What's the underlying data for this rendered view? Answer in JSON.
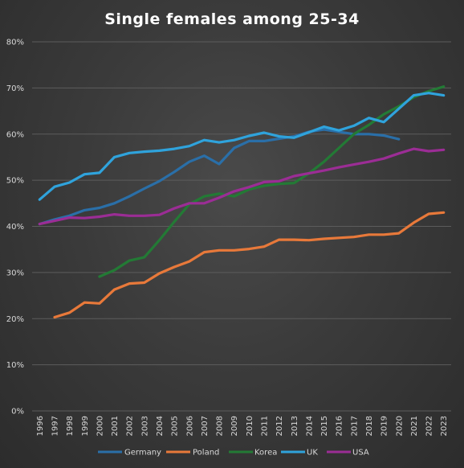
{
  "chart_data": {
    "type": "line",
    "title": "Single females among 25-34",
    "xlabel": "",
    "ylabel": "",
    "ylim": [
      0,
      80
    ],
    "yticks": [
      0,
      10,
      20,
      30,
      40,
      50,
      60,
      70,
      80
    ],
    "ytick_format": "%",
    "grid": true,
    "legend_position": "bottom",
    "x": [
      "1996",
      "1997",
      "1998",
      "1999",
      "2000",
      "2001",
      "2002",
      "2003",
      "2004",
      "2005",
      "2006",
      "2007",
      "2008",
      "2009",
      "2010",
      "2011",
      "2012",
      "2013",
      "2014",
      "2015",
      "2016",
      "2017",
      "2018",
      "2019",
      "2020",
      "2021",
      "2022",
      "2023"
    ],
    "series": [
      {
        "name": "Germany",
        "color": "#2a6fa8",
        "values": [
          40.5,
          41.5,
          42.3,
          43.5,
          44.0,
          45.0,
          46.5,
          48.2,
          49.8,
          51.8,
          54.0,
          55.3,
          53.5,
          57.0,
          58.5,
          58.5,
          59.0,
          59.5,
          60.5,
          61.0,
          60.5,
          60.0,
          60.0,
          59.7,
          58.9,
          null,
          null,
          null
        ]
      },
      {
        "name": "Poland",
        "color": "#e8793a",
        "values": [
          null,
          20.3,
          21.3,
          23.5,
          23.3,
          26.3,
          27.6,
          27.8,
          29.8,
          31.2,
          32.4,
          34.4,
          34.8,
          34.8,
          35.1,
          35.6,
          37.1,
          37.1,
          37.0,
          37.3,
          37.5,
          37.7,
          38.2,
          38.2,
          38.5,
          40.8,
          42.7,
          43.0
        ]
      },
      {
        "name": "Korea",
        "color": "#237a35",
        "values": [
          null,
          null,
          null,
          null,
          29.1,
          30.5,
          32.6,
          33.3,
          37.0,
          41.0,
          44.8,
          46.5,
          47.1,
          46.5,
          48.0,
          48.8,
          49.2,
          49.4,
          51.5,
          54.0,
          57.0,
          60.0,
          62.0,
          64.3,
          66.0,
          68.0,
          69.3,
          70.3
        ]
      },
      {
        "name": "UK",
        "color": "#2fa3dc",
        "values": [
          45.8,
          48.6,
          49.5,
          51.3,
          51.6,
          55.0,
          55.9,
          56.2,
          56.4,
          56.8,
          57.4,
          58.7,
          58.2,
          58.7,
          59.6,
          60.3,
          59.5,
          59.2,
          60.4,
          61.6,
          60.8,
          61.8,
          63.5,
          62.6,
          65.5,
          68.4,
          68.9,
          68.4
        ]
      },
      {
        "name": "USA",
        "color": "#9b2d95",
        "values": [
          40.5,
          41.2,
          41.9,
          41.8,
          42.1,
          42.6,
          42.3,
          42.3,
          42.5,
          43.9,
          45.0,
          45.0,
          46.2,
          47.6,
          48.5,
          49.6,
          49.8,
          50.9,
          51.5,
          52.1,
          52.8,
          53.4,
          54.0,
          54.7,
          55.8,
          56.8,
          56.3,
          56.6
        ]
      }
    ]
  }
}
